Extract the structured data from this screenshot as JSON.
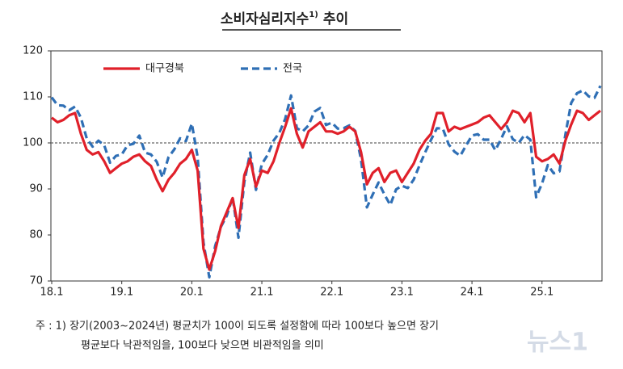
{
  "chart_data": {
    "type": "line",
    "title": "소비자심리지수",
    "title_note": "1)",
    "title_suffix": "추이",
    "categories": [
      "18.1",
      null,
      null,
      null,
      null,
      null,
      null,
      null,
      null,
      null,
      null,
      null,
      "19.1",
      null,
      null,
      null,
      null,
      null,
      null,
      null,
      null,
      null,
      null,
      null,
      "20.1",
      null,
      null,
      null,
      null,
      null,
      null,
      null,
      null,
      null,
      null,
      null,
      "21.1",
      null,
      null,
      null,
      null,
      null,
      null,
      null,
      null,
      null,
      null,
      null,
      "22.1",
      null,
      null,
      null,
      null,
      null,
      null,
      null,
      null,
      null,
      null,
      null,
      "23.1",
      null,
      null,
      null,
      null,
      null,
      null,
      null,
      null,
      null,
      null,
      null,
      "24.1",
      null,
      null,
      null,
      null,
      null,
      null,
      null,
      null,
      null,
      null,
      null,
      "25.1",
      null,
      null,
      null,
      null,
      null,
      null,
      null,
      null,
      null,
      null
    ],
    "series": [
      {
        "name": "대구경북",
        "color": "#e0202a",
        "dash": false,
        "values": [
          105.5,
          104.5,
          105,
          106,
          106.5,
          102,
          98.5,
          97.5,
          98,
          96,
          93.5,
          94.5,
          95.5,
          96,
          97,
          97.5,
          96,
          95,
          92,
          89.5,
          92,
          93.5,
          95.5,
          96.5,
          98.5,
          94,
          77,
          72.5,
          76.5,
          82,
          85,
          88,
          81.5,
          93,
          96.5,
          90.5,
          94,
          93.5,
          96,
          100,
          103.5,
          107.5,
          102,
          99,
          102.5,
          103.5,
          104.5,
          102.5,
          102.5,
          102,
          102.5,
          103.5,
          102.5,
          98,
          91,
          93.5,
          94.5,
          91.5,
          93.5,
          94,
          91.5,
          93.5,
          95.5,
          98.5,
          100.5,
          102,
          106.5,
          106.5,
          102.5,
          103.5,
          103,
          103.5,
          104,
          104.5,
          105.5,
          106,
          104.5,
          103,
          104.5,
          107,
          106.5,
          104.5,
          106.5,
          97,
          96,
          96.5,
          97.5,
          95.5,
          100.5,
          104,
          107,
          106.5,
          105,
          106,
          107
        ]
      },
      {
        "name": "전국",
        "color": "#2f6fb5",
        "dash": true,
        "values": [
          109.9,
          108.2,
          108.1,
          107.1,
          107.9,
          105.5,
          101,
          99.2,
          100.5,
          99.5,
          95.7,
          97.2,
          97.5,
          99.5,
          99.8,
          101.6,
          97.9,
          97.5,
          95.9,
          92.5,
          96.9,
          98.6,
          101,
          100.4,
          104.2,
          96.9,
          78.4,
          70.8,
          77.6,
          81.8,
          84.2,
          88.2,
          79.4,
          91.6,
          97.9,
          89.8,
          95.4,
          97.4,
          100.5,
          102.2,
          105.2,
          110.3,
          103.2,
          102.5,
          103.8,
          106.8,
          107.6,
          103.9,
          104.4,
          103.1,
          103.2,
          103.8,
          102.6,
          96.4,
          86,
          88.8,
          91.4,
          88.8,
          86.5,
          89.9,
          90.7,
          90.2,
          92,
          95.1,
          98,
          100.7,
          103.2,
          103.1,
          99.7,
          98.1,
          97.2,
          99.5,
          101.6,
          101.9,
          100.7,
          100.7,
          98.4,
          100.9,
          103.6,
          100.8,
          100,
          101.7,
          100.7,
          88.2,
          91.2,
          95.2,
          93.4,
          93.8,
          101.8,
          108.7,
          110.8,
          111.4,
          110.1,
          109.8,
          112.4
        ]
      }
    ],
    "reference_line": 100,
    "ylim": [
      70,
      120
    ],
    "yticks": [
      70,
      80,
      90,
      100,
      110,
      120
    ],
    "legend": "top-left",
    "footnote": [
      "주 : 1) 장기(2003~2024년) 평균치가 100이 되도록 설정함에 따라 100보다 높으면 장기",
      "평균보다 낙관적임을, 100보다 낮으면 비관적임을 의미"
    ],
    "watermark": "뉴스1"
  }
}
